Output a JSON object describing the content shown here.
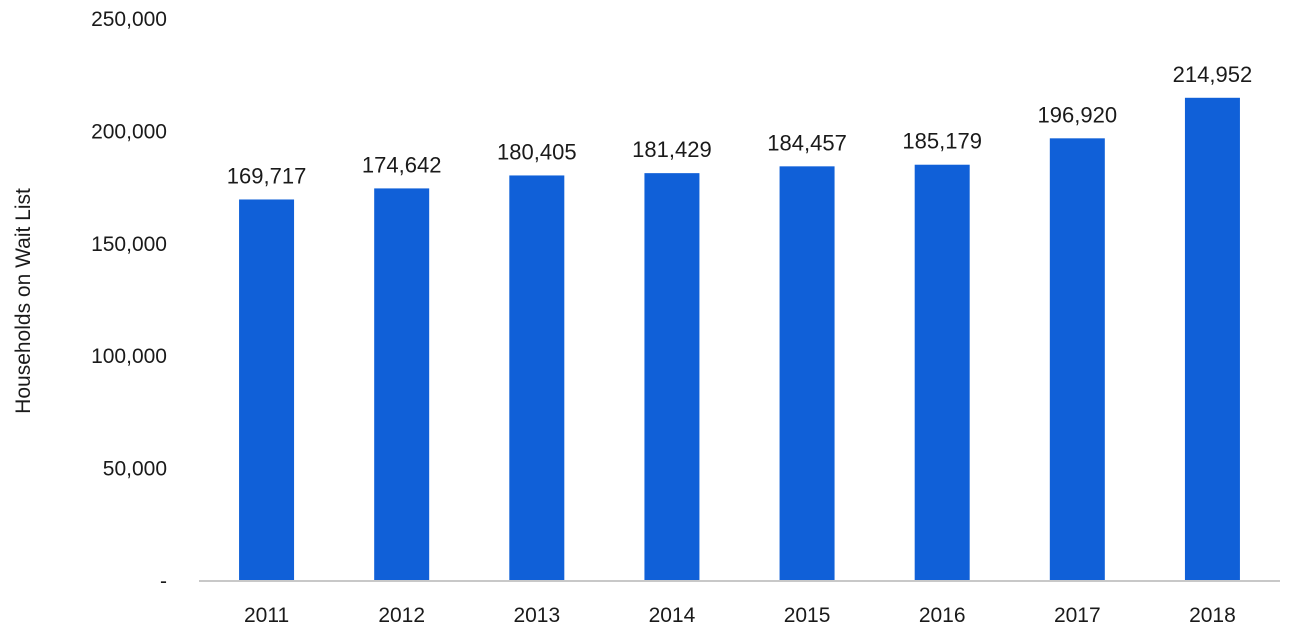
{
  "chart_data": {
    "type": "bar",
    "title": "",
    "xlabel": "",
    "ylabel": "Households on Wait List",
    "categories": [
      "2011",
      "2012",
      "2013",
      "2014",
      "2015",
      "2016",
      "2017",
      "2018"
    ],
    "values": [
      169717,
      174642,
      180405,
      181429,
      184457,
      185179,
      196920,
      214952
    ],
    "data_labels": [
      "169,717",
      "174,642",
      "180,405",
      "181,429",
      "184,457",
      "185,179",
      "196,920",
      "214,952"
    ],
    "yticks": [
      0,
      50000,
      100000,
      150000,
      200000,
      250000
    ],
    "ytick_labels": [
      "-",
      "50,000",
      "100,000",
      "150,000",
      "200,000",
      "250,000"
    ],
    "ylim": [
      0,
      250000
    ],
    "grid": false,
    "legend": "none",
    "bar_color": "#1060d8",
    "axis_color": "#c8c8c8"
  }
}
